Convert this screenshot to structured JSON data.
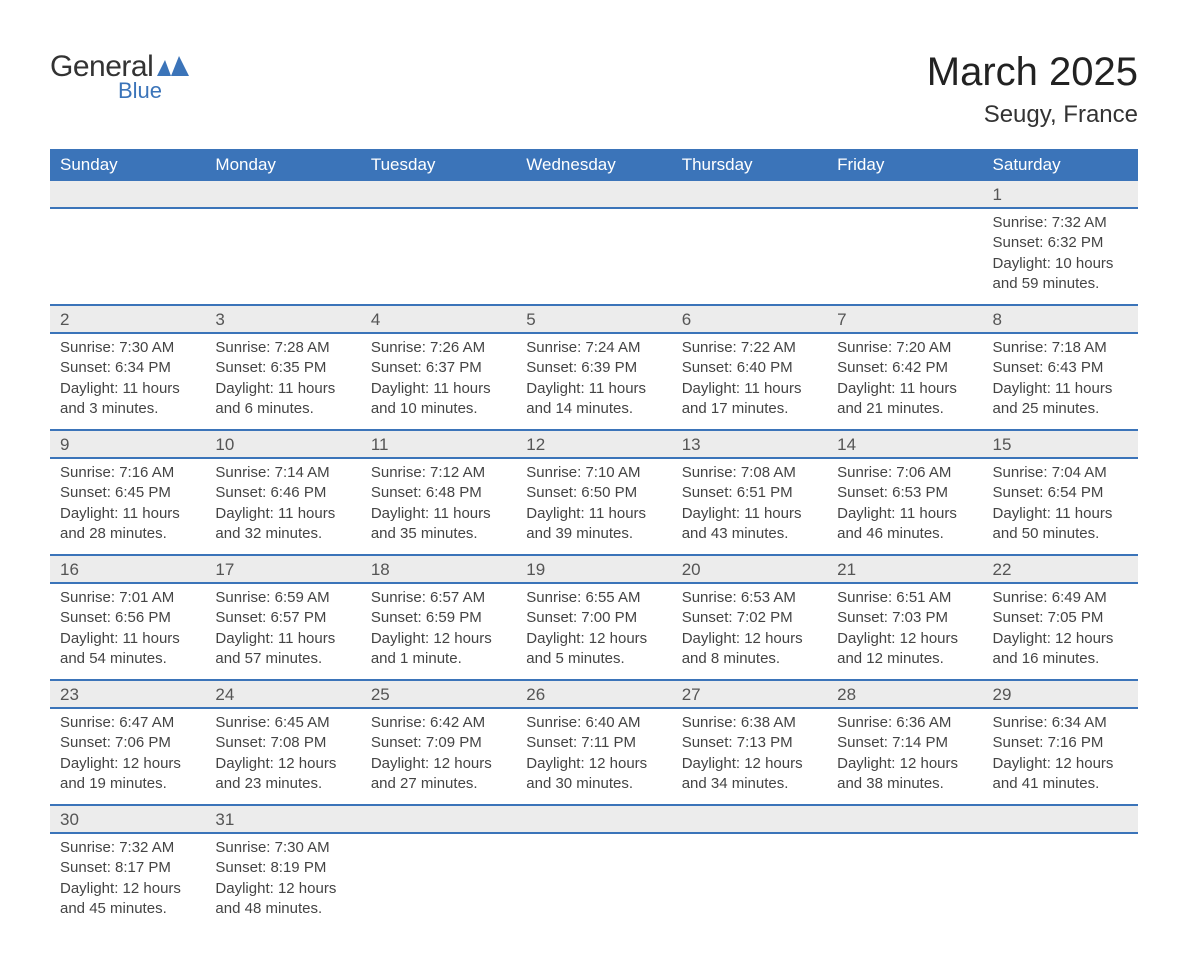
{
  "brand": {
    "word1": "General",
    "word2": "Blue",
    "icon_color": "#3b74b9",
    "text_color": "#333333"
  },
  "header": {
    "title": "March 2025",
    "location": "Seugy, France"
  },
  "colors": {
    "header_bg": "#3b74b9",
    "header_text": "#ffffff",
    "daynum_bg": "#ececec",
    "daynum_text": "#555555",
    "body_text": "#444444",
    "separator": "#3b74b9",
    "page_bg": "#ffffff"
  },
  "weekdays": [
    "Sunday",
    "Monday",
    "Tuesday",
    "Wednesday",
    "Thursday",
    "Friday",
    "Saturday"
  ],
  "weeks": [
    [
      null,
      null,
      null,
      null,
      null,
      null,
      {
        "n": "1",
        "sunrise": "Sunrise: 7:32 AM",
        "sunset": "Sunset: 6:32 PM",
        "daylight": "Daylight: 10 hours and 59 minutes."
      }
    ],
    [
      {
        "n": "2",
        "sunrise": "Sunrise: 7:30 AM",
        "sunset": "Sunset: 6:34 PM",
        "daylight": "Daylight: 11 hours and 3 minutes."
      },
      {
        "n": "3",
        "sunrise": "Sunrise: 7:28 AM",
        "sunset": "Sunset: 6:35 PM",
        "daylight": "Daylight: 11 hours and 6 minutes."
      },
      {
        "n": "4",
        "sunrise": "Sunrise: 7:26 AM",
        "sunset": "Sunset: 6:37 PM",
        "daylight": "Daylight: 11 hours and 10 minutes."
      },
      {
        "n": "5",
        "sunrise": "Sunrise: 7:24 AM",
        "sunset": "Sunset: 6:39 PM",
        "daylight": "Daylight: 11 hours and 14 minutes."
      },
      {
        "n": "6",
        "sunrise": "Sunrise: 7:22 AM",
        "sunset": "Sunset: 6:40 PM",
        "daylight": "Daylight: 11 hours and 17 minutes."
      },
      {
        "n": "7",
        "sunrise": "Sunrise: 7:20 AM",
        "sunset": "Sunset: 6:42 PM",
        "daylight": "Daylight: 11 hours and 21 minutes."
      },
      {
        "n": "8",
        "sunrise": "Sunrise: 7:18 AM",
        "sunset": "Sunset: 6:43 PM",
        "daylight": "Daylight: 11 hours and 25 minutes."
      }
    ],
    [
      {
        "n": "9",
        "sunrise": "Sunrise: 7:16 AM",
        "sunset": "Sunset: 6:45 PM",
        "daylight": "Daylight: 11 hours and 28 minutes."
      },
      {
        "n": "10",
        "sunrise": "Sunrise: 7:14 AM",
        "sunset": "Sunset: 6:46 PM",
        "daylight": "Daylight: 11 hours and 32 minutes."
      },
      {
        "n": "11",
        "sunrise": "Sunrise: 7:12 AM",
        "sunset": "Sunset: 6:48 PM",
        "daylight": "Daylight: 11 hours and 35 minutes."
      },
      {
        "n": "12",
        "sunrise": "Sunrise: 7:10 AM",
        "sunset": "Sunset: 6:50 PM",
        "daylight": "Daylight: 11 hours and 39 minutes."
      },
      {
        "n": "13",
        "sunrise": "Sunrise: 7:08 AM",
        "sunset": "Sunset: 6:51 PM",
        "daylight": "Daylight: 11 hours and 43 minutes."
      },
      {
        "n": "14",
        "sunrise": "Sunrise: 7:06 AM",
        "sunset": "Sunset: 6:53 PM",
        "daylight": "Daylight: 11 hours and 46 minutes."
      },
      {
        "n": "15",
        "sunrise": "Sunrise: 7:04 AM",
        "sunset": "Sunset: 6:54 PM",
        "daylight": "Daylight: 11 hours and 50 minutes."
      }
    ],
    [
      {
        "n": "16",
        "sunrise": "Sunrise: 7:01 AM",
        "sunset": "Sunset: 6:56 PM",
        "daylight": "Daylight: 11 hours and 54 minutes."
      },
      {
        "n": "17",
        "sunrise": "Sunrise: 6:59 AM",
        "sunset": "Sunset: 6:57 PM",
        "daylight": "Daylight: 11 hours and 57 minutes."
      },
      {
        "n": "18",
        "sunrise": "Sunrise: 6:57 AM",
        "sunset": "Sunset: 6:59 PM",
        "daylight": "Daylight: 12 hours and 1 minute."
      },
      {
        "n": "19",
        "sunrise": "Sunrise: 6:55 AM",
        "sunset": "Sunset: 7:00 PM",
        "daylight": "Daylight: 12 hours and 5 minutes."
      },
      {
        "n": "20",
        "sunrise": "Sunrise: 6:53 AM",
        "sunset": "Sunset: 7:02 PM",
        "daylight": "Daylight: 12 hours and 8 minutes."
      },
      {
        "n": "21",
        "sunrise": "Sunrise: 6:51 AM",
        "sunset": "Sunset: 7:03 PM",
        "daylight": "Daylight: 12 hours and 12 minutes."
      },
      {
        "n": "22",
        "sunrise": "Sunrise: 6:49 AM",
        "sunset": "Sunset: 7:05 PM",
        "daylight": "Daylight: 12 hours and 16 minutes."
      }
    ],
    [
      {
        "n": "23",
        "sunrise": "Sunrise: 6:47 AM",
        "sunset": "Sunset: 7:06 PM",
        "daylight": "Daylight: 12 hours and 19 minutes."
      },
      {
        "n": "24",
        "sunrise": "Sunrise: 6:45 AM",
        "sunset": "Sunset: 7:08 PM",
        "daylight": "Daylight: 12 hours and 23 minutes."
      },
      {
        "n": "25",
        "sunrise": "Sunrise: 6:42 AM",
        "sunset": "Sunset: 7:09 PM",
        "daylight": "Daylight: 12 hours and 27 minutes."
      },
      {
        "n": "26",
        "sunrise": "Sunrise: 6:40 AM",
        "sunset": "Sunset: 7:11 PM",
        "daylight": "Daylight: 12 hours and 30 minutes."
      },
      {
        "n": "27",
        "sunrise": "Sunrise: 6:38 AM",
        "sunset": "Sunset: 7:13 PM",
        "daylight": "Daylight: 12 hours and 34 minutes."
      },
      {
        "n": "28",
        "sunrise": "Sunrise: 6:36 AM",
        "sunset": "Sunset: 7:14 PM",
        "daylight": "Daylight: 12 hours and 38 minutes."
      },
      {
        "n": "29",
        "sunrise": "Sunrise: 6:34 AM",
        "sunset": "Sunset: 7:16 PM",
        "daylight": "Daylight: 12 hours and 41 minutes."
      }
    ],
    [
      {
        "n": "30",
        "sunrise": "Sunrise: 7:32 AM",
        "sunset": "Sunset: 8:17 PM",
        "daylight": "Daylight: 12 hours and 45 minutes."
      },
      {
        "n": "31",
        "sunrise": "Sunrise: 7:30 AM",
        "sunset": "Sunset: 8:19 PM",
        "daylight": "Daylight: 12 hours and 48 minutes."
      },
      null,
      null,
      null,
      null,
      null
    ]
  ]
}
